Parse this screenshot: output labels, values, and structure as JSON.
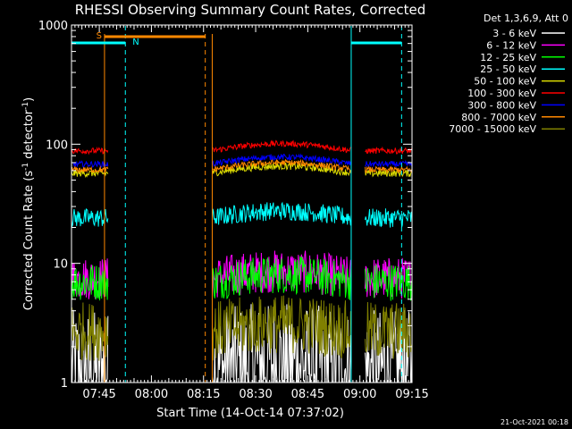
{
  "chart_data": {
    "type": "line",
    "title": "RHESSI Observing Summary Count Rates, Corrected",
    "xlabel": "Start Time (14-Oct-14 07:37:02)",
    "ylabel_main": "Corrected Count Rate (s",
    "ylabel_sup1": "-1",
    "ylabel_mid": " detector",
    "ylabel_sup2": "-1",
    "ylabel_end": ")",
    "yscale": "log",
    "ylim": [
      1,
      1000
    ],
    "xlim_minutes": [
      0,
      98
    ],
    "x_ticks": [
      {
        "minute": 8,
        "label": "07:45"
      },
      {
        "minute": 23,
        "label": "08:00"
      },
      {
        "minute": 38,
        "label": "08:15"
      },
      {
        "minute": 53,
        "label": "08:30"
      },
      {
        "minute": 68,
        "label": "08:45"
      },
      {
        "minute": 83,
        "label": "09:00"
      },
      {
        "minute": 98,
        "label": "09:15"
      }
    ],
    "y_ticks": [
      {
        "value": 1,
        "label": "1"
      },
      {
        "value": 10,
        "label": "10"
      },
      {
        "value": 100,
        "label": "100"
      },
      {
        "value": 1000,
        "label": "1000"
      }
    ],
    "legend_header": "Det 1,3,6,9, Att 0",
    "legend_placement": "right",
    "timestamp": "21-Oct-2021 00:18",
    "observing_segments": [
      {
        "x0": 0,
        "x1": 10.5
      },
      {
        "x0": 40.5,
        "x1": 80.5
      },
      {
        "x0": 84.5,
        "x1": 98
      }
    ],
    "series": [
      {
        "name": "3 - 6 keV",
        "color": "#ffffff",
        "base": 1.3,
        "noise": 0.5
      },
      {
        "name": "6 - 12 keV",
        "color": "#ff00ff",
        "base": 7.5,
        "noise": 0.18
      },
      {
        "name": "12 - 25 keV",
        "color": "#00ff00",
        "base": 7.0,
        "noise": 0.16
      },
      {
        "name": "25 - 50 keV",
        "color": "#00ffff",
        "base": 24,
        "noise": 0.08
      },
      {
        "name": "50 - 100 keV",
        "color": "#dddd00",
        "base": 57,
        "noise": 0.03
      },
      {
        "name": "100 - 300 keV",
        "color": "#ff0000",
        "base": 88,
        "noise": 0.025
      },
      {
        "name": "300 - 800 keV",
        "color": "#0000ff",
        "base": 68,
        "noise": 0.025
      },
      {
        "name": "800 - 7000 keV",
        "color": "#ff8800",
        "base": 61,
        "noise": 0.025
      },
      {
        "name": "7000 - 15000 keV",
        "color": "#808000",
        "base": 2.7,
        "noise": 0.25
      }
    ],
    "markers": {
      "saa_label": "S",
      "saa_range": [
        9.5,
        38.5
      ],
      "night_label": "N",
      "night_ranges": [
        [
          0,
          15.5
        ],
        [
          80.5,
          95
        ]
      ],
      "cyan_lines": [
        0,
        15.5,
        80.5,
        95
      ],
      "orange_lines": [
        9.5,
        38.5,
        40.5
      ]
    }
  }
}
